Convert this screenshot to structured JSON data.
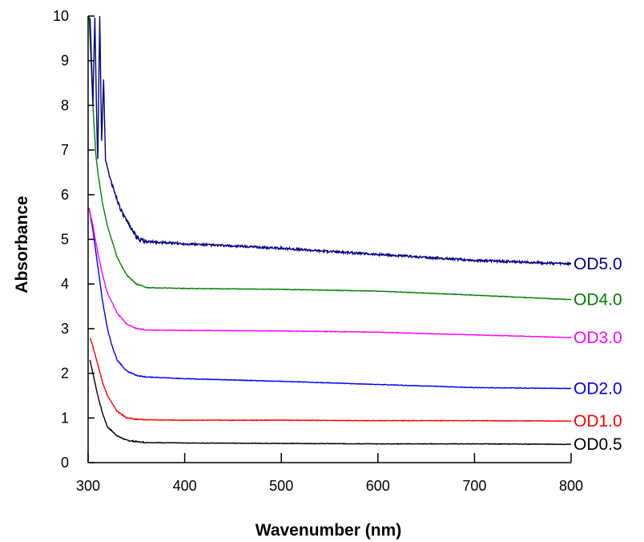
{
  "chart_data": {
    "type": "line",
    "title": "",
    "xlabel": "Wavenumber (nm)",
    "ylabel": "Absorbance",
    "xlim": [
      300,
      800
    ],
    "ylim": [
      0,
      10
    ],
    "xticks": [
      300,
      400,
      500,
      600,
      700,
      800
    ],
    "yticks": [
      0,
      1,
      2,
      3,
      4,
      5,
      6,
      7,
      8,
      9,
      10
    ],
    "grid": false,
    "legend": "labels at right end of each line",
    "series": [
      {
        "name": "OD0.5",
        "color": "#000000",
        "points": [
          [
            302,
            2.3
          ],
          [
            305,
            2.0
          ],
          [
            310,
            1.5
          ],
          [
            315,
            1.1
          ],
          [
            320,
            0.8
          ],
          [
            330,
            0.6
          ],
          [
            340,
            0.5
          ],
          [
            350,
            0.47
          ],
          [
            360,
            0.45
          ],
          [
            400,
            0.44
          ],
          [
            500,
            0.43
          ],
          [
            600,
            0.42
          ],
          [
            700,
            0.42
          ],
          [
            800,
            0.41
          ]
        ]
      },
      {
        "name": "OD1.0",
        "color": "#ff0000",
        "points": [
          [
            302,
            2.8
          ],
          [
            305,
            2.6
          ],
          [
            310,
            2.2
          ],
          [
            315,
            1.8
          ],
          [
            320,
            1.5
          ],
          [
            330,
            1.15
          ],
          [
            340,
            1.0
          ],
          [
            350,
            0.97
          ],
          [
            360,
            0.96
          ],
          [
            400,
            0.95
          ],
          [
            500,
            0.95
          ],
          [
            600,
            0.94
          ],
          [
            700,
            0.94
          ],
          [
            800,
            0.93
          ]
        ]
      },
      {
        "name": "OD2.0",
        "color": "#0000ff",
        "points": [
          [
            301,
            5.7
          ],
          [
            305,
            5.2
          ],
          [
            310,
            4.4
          ],
          [
            315,
            3.6
          ],
          [
            320,
            3.0
          ],
          [
            325,
            2.6
          ],
          [
            330,
            2.3
          ],
          [
            340,
            2.05
          ],
          [
            350,
            1.95
          ],
          [
            360,
            1.92
          ],
          [
            400,
            1.88
          ],
          [
            500,
            1.82
          ],
          [
            600,
            1.75
          ],
          [
            700,
            1.68
          ],
          [
            800,
            1.66
          ]
        ]
      },
      {
        "name": "OD3.0",
        "color": "#ff00ff",
        "points": [
          [
            301,
            5.7
          ],
          [
            305,
            5.3
          ],
          [
            310,
            4.7
          ],
          [
            315,
            4.2
          ],
          [
            320,
            3.8
          ],
          [
            330,
            3.35
          ],
          [
            340,
            3.1
          ],
          [
            350,
            3.0
          ],
          [
            360,
            2.97
          ],
          [
            400,
            2.96
          ],
          [
            500,
            2.95
          ],
          [
            600,
            2.92
          ],
          [
            700,
            2.86
          ],
          [
            800,
            2.8
          ]
        ]
      },
      {
        "name": "OD4.0",
        "color": "#008000",
        "points": [
          [
            301,
            10.0
          ],
          [
            305,
            8.0
          ],
          [
            308,
            6.9
          ],
          [
            310,
            6.5
          ],
          [
            315,
            5.8
          ],
          [
            320,
            5.3
          ],
          [
            330,
            4.6
          ],
          [
            340,
            4.2
          ],
          [
            350,
            4.0
          ],
          [
            360,
            3.92
          ],
          [
            400,
            3.9
          ],
          [
            500,
            3.88
          ],
          [
            600,
            3.84
          ],
          [
            700,
            3.75
          ],
          [
            800,
            3.65
          ]
        ]
      },
      {
        "name": "OD5.0",
        "color": "#000080",
        "points": [
          [
            302,
            10.0
          ],
          [
            305,
            8.0
          ],
          [
            307,
            10.0
          ],
          [
            309,
            7.5
          ],
          [
            310,
            6.8
          ],
          [
            312,
            10.0
          ],
          [
            314,
            7.2
          ],
          [
            316,
            8.6
          ],
          [
            318,
            6.8
          ],
          [
            320,
            6.6
          ],
          [
            325,
            6.2
          ],
          [
            330,
            5.9
          ],
          [
            335,
            5.6
          ],
          [
            340,
            5.4
          ],
          [
            345,
            5.25
          ],
          [
            350,
            5.05
          ],
          [
            355,
            4.98
          ],
          [
            360,
            4.95
          ],
          [
            400,
            4.9
          ],
          [
            500,
            4.8
          ],
          [
            600,
            4.66
          ],
          [
            700,
            4.53
          ],
          [
            800,
            4.45
          ]
        ]
      }
    ]
  }
}
